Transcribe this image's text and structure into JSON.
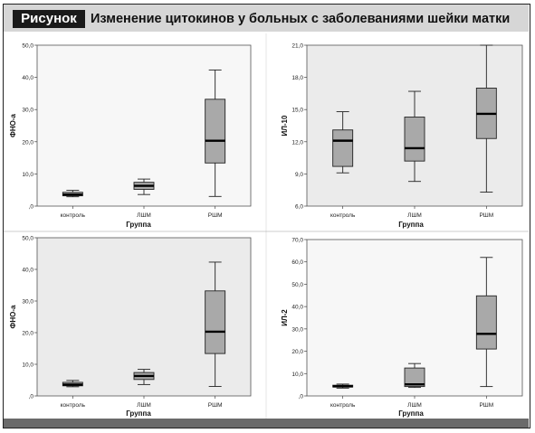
{
  "figure": {
    "label": "Рисунок",
    "title": "Изменение цитокинов у больных с заболеваниями шейки матки"
  },
  "chart_data": [
    {
      "type": "box",
      "categories": [
        "контроль",
        "ЛШМ",
        "РШМ"
      ],
      "xlabel": "Группа",
      "ylabel": "ФНО-а",
      "ylim": [
        0,
        50
      ],
      "yticks": [
        ",0",
        "10,0",
        "20,0",
        "30,0",
        "40,0",
        "50,0"
      ],
      "boxes": [
        {
          "min": 2.9,
          "q1": 3.2,
          "median": 3.6,
          "q3": 4.3,
          "max": 4.9
        },
        {
          "min": 3.6,
          "q1": 5.2,
          "median": 6.3,
          "q3": 7.4,
          "max": 8.4
        },
        {
          "min": 3.0,
          "q1": 13.4,
          "median": 20.3,
          "q3": 33.2,
          "max": 42.3
        }
      ]
    },
    {
      "type": "box",
      "categories": [
        "контроль",
        "ЛШМ",
        "РШМ"
      ],
      "xlabel": "Группа",
      "ylabel": "ИЛ-10",
      "ylim": [
        6,
        21
      ],
      "yticks": [
        "6,0",
        "9,0",
        "12,0",
        "15,0",
        "18,0",
        "21,0"
      ],
      "boxes": [
        {
          "min": 9.1,
          "q1": 9.7,
          "median": 12.1,
          "q3": 13.1,
          "max": 14.8
        },
        {
          "min": 8.3,
          "q1": 10.2,
          "median": 11.4,
          "q3": 14.3,
          "max": 16.7
        },
        {
          "min": 7.3,
          "q1": 12.3,
          "median": 14.6,
          "q3": 17.0,
          "max": 21.0
        }
      ]
    },
    {
      "type": "box",
      "categories": [
        "контроль",
        "ЛШМ",
        "РШМ"
      ],
      "xlabel": "Группа",
      "ylabel": "ФНО-а",
      "ylim": [
        0,
        50
      ],
      "yticks": [
        ",0",
        "10,0",
        "20,0",
        "30,0",
        "40,0",
        "50,0"
      ],
      "boxes": [
        {
          "min": 2.9,
          "q1": 3.2,
          "median": 3.6,
          "q3": 4.3,
          "max": 4.9
        },
        {
          "min": 3.6,
          "q1": 5.2,
          "median": 6.3,
          "q3": 7.4,
          "max": 8.4
        },
        {
          "min": 3.0,
          "q1": 13.4,
          "median": 20.3,
          "q3": 33.2,
          "max": 42.3
        }
      ]
    },
    {
      "type": "box",
      "categories": [
        "контроль",
        "ЛШМ",
        "РШМ"
      ],
      "xlabel": "Группа",
      "ylabel": "ИЛ-2",
      "ylim": [
        0,
        70
      ],
      "yticks": [
        ",0",
        "10,0",
        "20,0",
        "30,0",
        "40,0",
        "50,0",
        "60,0",
        "70,0"
      ],
      "boxes": [
        {
          "min": 3.5,
          "q1": 4.0,
          "median": 4.3,
          "q3": 4.8,
          "max": 5.3
        },
        {
          "min": 3.8,
          "q1": 4.2,
          "median": 5.2,
          "q3": 12.5,
          "max": 14.5
        },
        {
          "min": 4.2,
          "q1": 21.0,
          "median": 27.8,
          "q3": 44.8,
          "max": 62.0
        }
      ]
    }
  ],
  "colors": {
    "box_fill": "#a9a9a9",
    "plot_bg_light": "#f7f7f7",
    "plot_bg_gray": "#ebebeb",
    "header_bg": "#d6d6d6"
  }
}
